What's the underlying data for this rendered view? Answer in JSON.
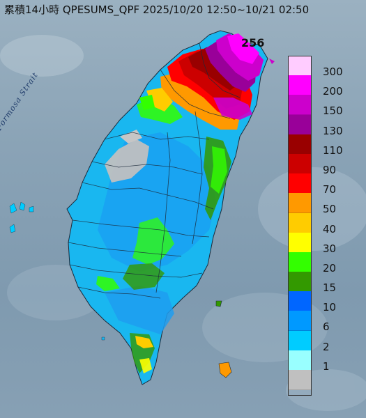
{
  "title": "累積14小時 QPESUMS_QPF 2025/10/20 12:50~10/21 02:50",
  "strait_label": "Formosa Strait",
  "max_value_label": "256",
  "legend": [
    {
      "label": "300",
      "color": "#ffccff"
    },
    {
      "label": "200",
      "color": "#ff00ff"
    },
    {
      "label": "150",
      "color": "#cc00cc"
    },
    {
      "label": "130",
      "color": "#990099"
    },
    {
      "label": "110",
      "color": "#990000"
    },
    {
      "label": "90",
      "color": "#cc0000"
    },
    {
      "label": "70",
      "color": "#ff0000"
    },
    {
      "label": "50",
      "color": "#ff9900"
    },
    {
      "label": "40",
      "color": "#ffcc00"
    },
    {
      "label": "30",
      "color": "#ffff00"
    },
    {
      "label": "20",
      "color": "#33ff00"
    },
    {
      "label": "15",
      "color": "#339900"
    },
    {
      "label": "10",
      "color": "#0066ff"
    },
    {
      "label": "6",
      "color": "#0099ff"
    },
    {
      "label": "2",
      "color": "#00ccff"
    },
    {
      "label": "1",
      "color": "#99ffff"
    },
    {
      "label": "",
      "color": "#c0c0c0"
    }
  ]
}
